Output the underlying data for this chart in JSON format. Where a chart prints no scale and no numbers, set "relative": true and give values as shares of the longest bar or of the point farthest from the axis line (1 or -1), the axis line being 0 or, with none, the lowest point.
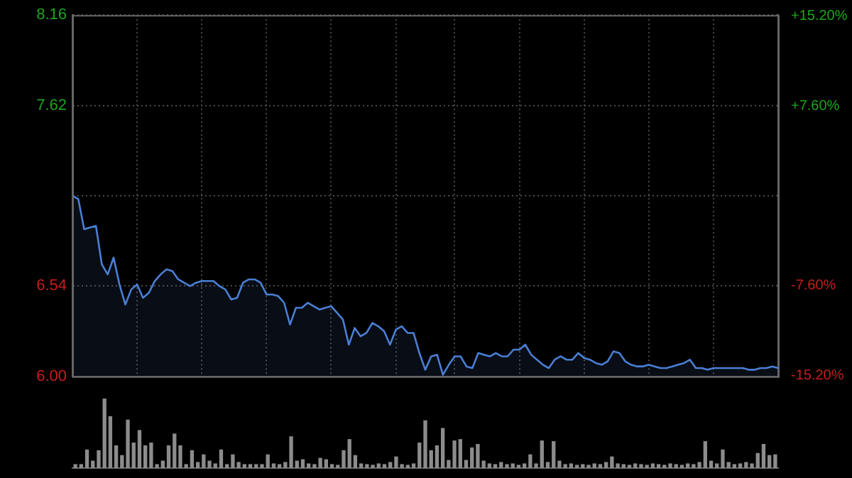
{
  "chart_data": [
    {
      "type": "area",
      "color": "#4a7fd4",
      "categories": [
        null,
        null,
        null,
        null,
        null,
        null,
        null,
        null,
        null,
        null,
        null,
        null,
        null,
        null,
        null,
        null,
        null,
        null,
        null,
        null,
        null,
        null,
        null,
        null,
        null,
        null,
        null,
        null,
        null,
        null,
        null,
        null,
        null,
        null,
        null,
        null,
        null,
        null,
        null,
        null,
        null,
        null,
        null,
        null,
        null,
        null,
        null,
        null,
        null,
        null,
        null,
        null,
        null,
        null,
        null,
        null,
        null,
        null,
        null,
        null,
        null,
        null,
        null,
        null,
        null,
        null,
        null,
        null,
        null,
        null,
        null,
        null,
        null,
        null,
        null,
        null,
        null,
        null,
        null,
        null,
        null,
        null,
        null,
        null,
        null,
        null,
        null,
        null,
        null,
        null,
        null,
        null,
        null,
        null,
        null,
        null,
        null,
        null,
        null,
        null,
        null,
        null,
        null,
        null,
        null,
        null,
        null,
        null,
        null,
        null,
        null,
        null,
        null,
        null,
        null,
        null,
        null,
        null,
        null,
        null,
        null
      ],
      "values": [
        7.08,
        7.06,
        6.88,
        6.89,
        6.9,
        6.67,
        6.61,
        6.71,
        6.55,
        6.43,
        6.52,
        6.55,
        6.47,
        6.5,
        6.57,
        6.61,
        6.64,
        6.63,
        6.58,
        6.56,
        6.54,
        6.56,
        6.57,
        6.57,
        6.57,
        6.54,
        6.52,
        6.46,
        6.47,
        6.56,
        6.58,
        6.58,
        6.56,
        6.49,
        6.49,
        6.48,
        6.44,
        6.31,
        6.41,
        6.41,
        6.44,
        6.42,
        6.4,
        6.41,
        6.42,
        6.38,
        6.34,
        6.19,
        6.29,
        6.24,
        6.26,
        6.32,
        6.3,
        6.27,
        6.19,
        6.28,
        6.3,
        6.26,
        6.26,
        6.14,
        6.04,
        6.12,
        6.13,
        6.01,
        6.07,
        6.12,
        6.12,
        6.06,
        6.05,
        6.14,
        6.13,
        6.12,
        6.14,
        6.12,
        6.12,
        6.16,
        6.16,
        6.19,
        6.13,
        6.1,
        6.07,
        6.05,
        6.1,
        6.12,
        6.1,
        6.1,
        6.14,
        6.11,
        6.1,
        6.08,
        6.07,
        6.09,
        6.15,
        6.14,
        6.09,
        6.07,
        6.06,
        6.06,
        6.07,
        6.06,
        6.05,
        6.05,
        6.06,
        6.07,
        6.08,
        6.1,
        6.05,
        6.05,
        6.04,
        6.05,
        6.05,
        6.05,
        6.05,
        6.05,
        6.05,
        6.04,
        6.04,
        6.05,
        6.05,
        6.06,
        6.05
      ],
      "ylim": [
        6.0,
        8.16
      ],
      "yticks": [
        {
          "value": 6,
          "label": "6.00"
        },
        {
          "value": 6.54,
          "label": "6.54"
        },
        {
          "value": 7.08,
          "label": null
        },
        {
          "value": 7.62,
          "label": "7.62"
        },
        {
          "value": 8.16,
          "label": "8.16"
        }
      ],
      "y2lim": [
        -15.25,
        15.25
      ],
      "y2ticks": [
        {
          "value": -15.2,
          "label": "-15.20%"
        },
        {
          "value": -7.6,
          "label": "-7.60%"
        },
        {
          "value": 7.6,
          "label": "+7.60%"
        },
        {
          "value": 15.2,
          "label": "+15.20%"
        }
      ],
      "grid": true,
      "tick_labels": "y",
      "marker": "none",
      "line_style": "solid",
      "legend": false
    },
    {
      "type": "bar",
      "relative": true,
      "color": "#8c8c8c",
      "grid": false,
      "legend": false,
      "categories": [
        null,
        null,
        null,
        null,
        null,
        null,
        null,
        null,
        null,
        null,
        null,
        null,
        null,
        null,
        null,
        null,
        null,
        null,
        null,
        null,
        null,
        null,
        null,
        null,
        null,
        null,
        null,
        null,
        null,
        null,
        null,
        null,
        null,
        null,
        null,
        null,
        null,
        null,
        null,
        null,
        null,
        null,
        null,
        null,
        null,
        null,
        null,
        null,
        null,
        null,
        null,
        null,
        null,
        null,
        null,
        null,
        null,
        null,
        null,
        null,
        null,
        null,
        null,
        null,
        null,
        null,
        null,
        null,
        null,
        null,
        null,
        null,
        null,
        null,
        null,
        null,
        null,
        null,
        null,
        null,
        null,
        null,
        null,
        null,
        null,
        null,
        null,
        null,
        null,
        null,
        null,
        null,
        null,
        null,
        null,
        null,
        null,
        null,
        null,
        null,
        null,
        null,
        null,
        null,
        null,
        null,
        null,
        null,
        null,
        null,
        null,
        null,
        null,
        null,
        null,
        null,
        null,
        null,
        null,
        null,
        null
      ],
      "values": [
        0.05,
        0.05,
        0.26,
        0.1,
        0.25,
        1,
        0.74,
        0.32,
        0.18,
        0.69,
        0.36,
        0.54,
        0.32,
        0.36,
        0.05,
        0.1,
        0.32,
        0.49,
        0.32,
        0.05,
        0.25,
        0.08,
        0.19,
        0.1,
        0.06,
        0.26,
        0.05,
        0.19,
        0.08,
        0.05,
        0.05,
        0.05,
        0.05,
        0.19,
        0.06,
        0.05,
        0.08,
        0.45,
        0.1,
        0.12,
        0.06,
        0.05,
        0.14,
        0.12,
        0.05,
        0.04,
        0.25,
        0.41,
        0.18,
        0.06,
        0.05,
        0.04,
        0.06,
        0.05,
        0.08,
        0.16,
        0.05,
        0.04,
        0.06,
        0.36,
        0.68,
        0.25,
        0.32,
        0.57,
        0.11,
        0.39,
        0.41,
        0.11,
        0.29,
        0.34,
        0.1,
        0.06,
        0.05,
        0.08,
        0.05,
        0.06,
        0.04,
        0.06,
        0.19,
        0.06,
        0.39,
        0.08,
        0.38,
        0.1,
        0.05,
        0.06,
        0.04,
        0.05,
        0.04,
        0.06,
        0.05,
        0.08,
        0.16,
        0.06,
        0.05,
        0.04,
        0.06,
        0.05,
        0.04,
        0.06,
        0.05,
        0.04,
        0.06,
        0.05,
        0.04,
        0.06,
        0.05,
        0.08,
        0.38,
        0.1,
        0.06,
        0.26,
        0.08,
        0.05,
        0.06,
        0.08,
        0.06,
        0.21,
        0.34,
        0.18,
        0.19
      ]
    }
  ]
}
